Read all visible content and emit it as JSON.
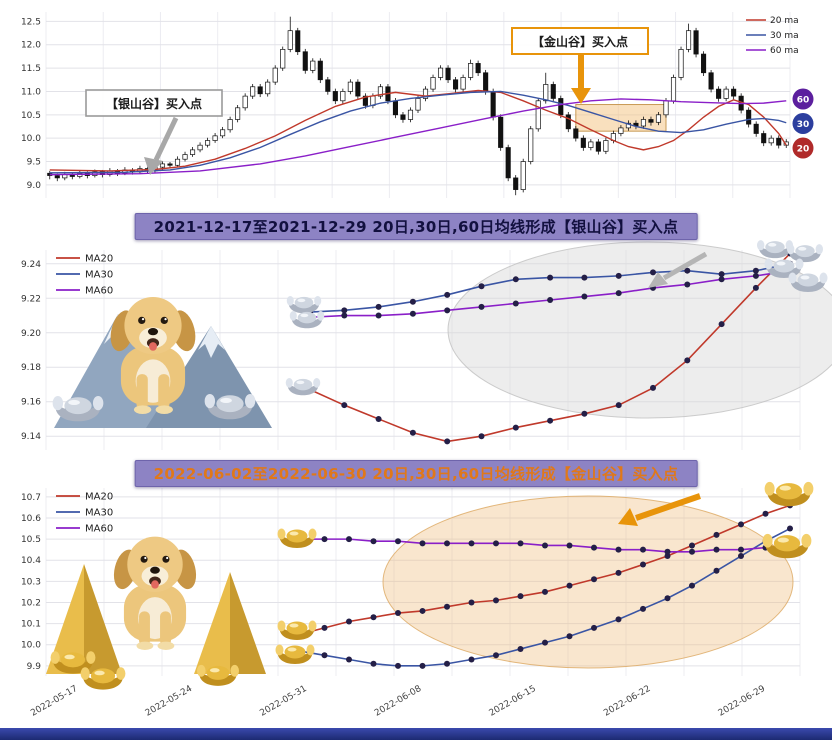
{
  "chart_data": [
    {
      "type": "candlestick",
      "title": "",
      "ylabel": "",
      "ylim": [
        8.72,
        12.7
      ],
      "yticks": [
        9.0,
        9.5,
        10.0,
        10.5,
        11.0,
        11.5,
        12.0,
        12.5
      ],
      "grid": true,
      "legend_position": "top-right",
      "legend": [
        {
          "label": "20 ma",
          "color": "#c0392b"
        },
        {
          "label": "30 ma",
          "color": "#3a55a4"
        },
        {
          "label": "60 ma",
          "color": "#8a1fc8"
        }
      ],
      "badges": [
        {
          "label": "60",
          "color": "#5c1f9e"
        },
        {
          "label": "30",
          "color": "#2c3e9e"
        },
        {
          "label": "20",
          "color": "#b02a2a"
        }
      ],
      "annotations": [
        {
          "id": "silver-valley",
          "text": "【银山谷】买入点",
          "color": "#a8a8a8"
        },
        {
          "id": "gold-valley",
          "text": "【金山谷】买入点",
          "color": "#e8940a"
        }
      ],
      "valley_box": {
        "i0": 70,
        "i1": 82,
        "price_top": 10.72,
        "price_bottom": 10.15
      },
      "candles": [
        [
          9.25,
          9.3,
          9.12,
          9.2
        ],
        [
          9.2,
          9.24,
          9.08,
          9.15
        ],
        [
          9.15,
          9.28,
          9.1,
          9.22
        ],
        [
          9.22,
          9.26,
          9.12,
          9.18
        ],
        [
          9.18,
          9.3,
          9.14,
          9.25
        ],
        [
          9.25,
          9.29,
          9.14,
          9.2
        ],
        [
          9.2,
          9.33,
          9.16,
          9.28
        ],
        [
          9.28,
          9.32,
          9.16,
          9.22
        ],
        [
          9.22,
          9.36,
          9.18,
          9.3
        ],
        [
          9.3,
          9.34,
          9.19,
          9.25
        ],
        [
          9.25,
          9.38,
          9.21,
          9.32
        ],
        [
          9.32,
          9.36,
          9.22,
          9.28
        ],
        [
          9.28,
          9.41,
          9.24,
          9.35
        ],
        [
          9.35,
          9.39,
          9.24,
          9.3
        ],
        [
          9.3,
          9.44,
          9.26,
          9.38
        ],
        [
          9.38,
          9.51,
          9.32,
          9.45
        ],
        [
          9.45,
          9.49,
          9.36,
          9.42
        ],
        [
          9.42,
          9.61,
          9.38,
          9.55
        ],
        [
          9.55,
          9.71,
          9.5,
          9.65
        ],
        [
          9.65,
          9.81,
          9.6,
          9.75
        ],
        [
          9.75,
          9.91,
          9.7,
          9.85
        ],
        [
          9.85,
          10.01,
          9.8,
          9.95
        ],
        [
          9.95,
          10.11,
          9.9,
          10.05
        ],
        [
          10.05,
          10.24,
          10.0,
          10.18
        ],
        [
          10.18,
          10.46,
          10.12,
          10.4
        ],
        [
          10.4,
          10.71,
          10.34,
          10.65
        ],
        [
          10.65,
          10.96,
          10.59,
          10.9
        ],
        [
          10.9,
          11.16,
          10.84,
          11.1
        ],
        [
          11.1,
          11.16,
          10.88,
          10.95
        ],
        [
          10.95,
          11.26,
          10.89,
          11.2
        ],
        [
          11.2,
          11.56,
          11.14,
          11.5
        ],
        [
          11.5,
          11.96,
          11.44,
          11.9
        ],
        [
          11.9,
          12.6,
          11.84,
          12.3
        ],
        [
          12.3,
          12.36,
          11.78,
          11.85
        ],
        [
          11.85,
          11.91,
          11.38,
          11.45
        ],
        [
          11.45,
          11.71,
          11.39,
          11.65
        ],
        [
          11.65,
          11.71,
          11.18,
          11.25
        ],
        [
          11.25,
          11.31,
          10.93,
          11.0
        ],
        [
          11.0,
          11.06,
          10.73,
          10.8
        ],
        [
          10.8,
          11.06,
          10.74,
          11.0
        ],
        [
          11.0,
          11.26,
          10.94,
          11.2
        ],
        [
          11.2,
          11.26,
          10.83,
          10.9
        ],
        [
          10.9,
          10.96,
          10.63,
          10.7
        ],
        [
          10.7,
          10.96,
          10.64,
          10.9
        ],
        [
          10.9,
          11.16,
          10.84,
          11.1
        ],
        [
          11.1,
          11.16,
          10.73,
          10.8
        ],
        [
          10.8,
          10.86,
          10.43,
          10.5
        ],
        [
          10.5,
          10.56,
          10.33,
          10.4
        ],
        [
          10.4,
          10.66,
          10.34,
          10.6
        ],
        [
          10.6,
          10.91,
          10.54,
          10.85
        ],
        [
          10.85,
          11.11,
          10.79,
          11.05
        ],
        [
          11.05,
          11.36,
          10.99,
          11.3
        ],
        [
          11.3,
          11.56,
          11.24,
          11.5
        ],
        [
          11.5,
          11.56,
          11.18,
          11.25
        ],
        [
          11.25,
          11.31,
          10.98,
          11.05
        ],
        [
          11.05,
          11.36,
          10.99,
          11.3
        ],
        [
          11.3,
          11.68,
          11.24,
          11.6
        ],
        [
          11.6,
          11.66,
          11.33,
          11.4
        ],
        [
          11.4,
          11.46,
          10.93,
          11.0
        ],
        [
          11.0,
          11.06,
          10.38,
          10.45
        ],
        [
          10.45,
          10.51,
          9.73,
          9.8
        ],
        [
          9.8,
          9.86,
          9.08,
          9.15
        ],
        [
          9.15,
          9.21,
          8.78,
          8.9
        ],
        [
          8.9,
          9.56,
          8.84,
          9.5
        ],
        [
          9.5,
          10.26,
          9.44,
          10.2
        ],
        [
          10.2,
          10.86,
          10.14,
          10.8
        ],
        [
          10.8,
          11.4,
          10.74,
          11.15
        ],
        [
          11.15,
          11.21,
          10.78,
          10.85
        ],
        [
          10.85,
          10.91,
          10.43,
          10.5
        ],
        [
          10.5,
          10.56,
          10.13,
          10.2
        ],
        [
          10.2,
          10.26,
          9.93,
          10.0
        ],
        [
          10.0,
          10.06,
          9.73,
          9.8
        ],
        [
          9.8,
          9.98,
          9.74,
          9.92
        ],
        [
          9.92,
          9.98,
          9.65,
          9.72
        ],
        [
          9.72,
          10.01,
          9.66,
          9.95
        ],
        [
          9.95,
          10.16,
          9.89,
          10.1
        ],
        [
          10.1,
          10.28,
          10.04,
          10.22
        ],
        [
          10.22,
          10.38,
          10.16,
          10.32
        ],
        [
          10.32,
          10.38,
          10.19,
          10.26
        ],
        [
          10.26,
          10.46,
          10.2,
          10.4
        ],
        [
          10.4,
          10.46,
          10.27,
          10.34
        ],
        [
          10.34,
          10.56,
          10.28,
          10.5
        ],
        [
          10.5,
          10.86,
          10.44,
          10.8
        ],
        [
          10.8,
          11.36,
          10.74,
          11.3
        ],
        [
          11.3,
          11.96,
          11.24,
          11.9
        ],
        [
          11.9,
          12.45,
          11.84,
          12.3
        ],
        [
          12.3,
          12.36,
          11.73,
          11.8
        ],
        [
          11.8,
          11.86,
          11.33,
          11.4
        ],
        [
          11.4,
          11.46,
          10.98,
          11.05
        ],
        [
          11.05,
          11.11,
          10.78,
          10.85
        ],
        [
          10.85,
          11.11,
          10.79,
          11.05
        ],
        [
          11.05,
          11.11,
          10.83,
          10.9
        ],
        [
          10.9,
          10.96,
          10.53,
          10.6
        ],
        [
          10.6,
          10.66,
          10.23,
          10.3
        ],
        [
          10.3,
          10.36,
          10.03,
          10.1
        ],
        [
          10.1,
          10.16,
          9.83,
          9.9
        ],
        [
          9.9,
          10.06,
          9.84,
          10.0
        ],
        [
          10.0,
          10.06,
          9.78,
          9.85
        ],
        [
          9.85,
          9.98,
          9.79,
          9.92
        ]
      ],
      "ma20": [
        [
          0,
          9.32
        ],
        [
          8,
          9.3
        ],
        [
          14,
          9.33
        ],
        [
          18,
          9.4
        ],
        [
          22,
          9.55
        ],
        [
          26,
          9.78
        ],
        [
          30,
          10.05
        ],
        [
          34,
          10.38
        ],
        [
          38,
          10.68
        ],
        [
          42,
          10.88
        ],
        [
          46,
          10.98
        ],
        [
          50,
          10.9
        ],
        [
          53,
          10.95
        ],
        [
          57,
          11.02
        ],
        [
          60,
          10.98
        ],
        [
          63,
          10.8
        ],
        [
          66,
          10.6
        ],
        [
          69,
          10.42
        ],
        [
          72,
          10.18
        ],
        [
          75,
          9.95
        ],
        [
          77,
          9.82
        ],
        [
          79,
          9.75
        ],
        [
          81,
          9.82
        ],
        [
          83,
          9.95
        ],
        [
          85,
          10.18
        ],
        [
          87,
          10.45
        ],
        [
          89,
          10.68
        ],
        [
          91,
          10.82
        ],
        [
          93,
          10.72
        ],
        [
          95,
          10.45
        ],
        [
          97,
          10.1
        ],
        [
          98,
          9.85
        ]
      ],
      "ma30": [
        [
          0,
          9.26
        ],
        [
          10,
          9.27
        ],
        [
          16,
          9.32
        ],
        [
          20,
          9.42
        ],
        [
          24,
          9.58
        ],
        [
          28,
          9.8
        ],
        [
          32,
          10.08
        ],
        [
          36,
          10.35
        ],
        [
          40,
          10.58
        ],
        [
          44,
          10.75
        ],
        [
          48,
          10.85
        ],
        [
          52,
          10.92
        ],
        [
          56,
          10.98
        ],
        [
          60,
          11.0
        ],
        [
          63,
          10.92
        ],
        [
          66,
          10.82
        ],
        [
          69,
          10.7
        ],
        [
          72,
          10.55
        ],
        [
          75,
          10.4
        ],
        [
          78,
          10.25
        ],
        [
          81,
          10.15
        ],
        [
          84,
          10.12
        ],
        [
          87,
          10.18
        ],
        [
          90,
          10.3
        ],
        [
          93,
          10.4
        ],
        [
          95,
          10.42
        ],
        [
          97,
          10.38
        ],
        [
          98,
          10.33
        ]
      ],
      "ma60": [
        [
          0,
          9.22
        ],
        [
          12,
          9.24
        ],
        [
          20,
          9.3
        ],
        [
          28,
          9.45
        ],
        [
          34,
          9.62
        ],
        [
          40,
          9.82
        ],
        [
          46,
          10.02
        ],
        [
          52,
          10.22
        ],
        [
          58,
          10.42
        ],
        [
          63,
          10.58
        ],
        [
          68,
          10.72
        ],
        [
          72,
          10.8
        ],
        [
          76,
          10.84
        ],
        [
          80,
          10.82
        ],
        [
          84,
          10.78
        ],
        [
          88,
          10.76
        ],
        [
          92,
          10.74
        ],
        [
          95,
          10.75
        ],
        [
          98,
          10.8
        ]
      ]
    },
    {
      "type": "line",
      "title": "2021-12-17至2021-12-29 20日,30日,60日均线形成【银山谷】买入点",
      "ylim": [
        9.132,
        9.248
      ],
      "yticks": [
        9.14,
        9.16,
        9.18,
        9.2,
        9.22,
        9.24
      ],
      "grid": true,
      "legend_position": "top-left",
      "highlight": "gray-ellipse",
      "series": [
        {
          "name": "MA20",
          "color": "#c0392b",
          "values": [
            9.167,
            9.158,
            9.15,
            9.142,
            9.137,
            9.14,
            9.145,
            9.149,
            9.153,
            9.158,
            9.168,
            9.184,
            9.205,
            9.226,
            9.246
          ]
        },
        {
          "name": "MA30",
          "color": "#3a55a4",
          "values": [
            9.212,
            9.213,
            9.215,
            9.218,
            9.222,
            9.227,
            9.231,
            9.232,
            9.232,
            9.233,
            9.235,
            9.236,
            9.234,
            9.236,
            9.24
          ]
        },
        {
          "name": "MA60",
          "color": "#8a1fc8",
          "values": [
            9.209,
            9.21,
            9.21,
            9.211,
            9.213,
            9.215,
            9.217,
            9.219,
            9.221,
            9.223,
            9.226,
            9.228,
            9.231,
            9.233,
            9.236
          ]
        }
      ]
    },
    {
      "type": "line",
      "title": "2022-06-02至2022-06-30 20日,30日,60日均线形成【金山谷】买入点",
      "ylim": [
        9.852,
        10.742
      ],
      "yticks": [
        9.9,
        10.0,
        10.1,
        10.2,
        10.3,
        10.4,
        10.5,
        10.6,
        10.7
      ],
      "grid": true,
      "legend_position": "top-left",
      "highlight": "orange-ellipse",
      "xticklabels": [
        "2022-05-17",
        "2022-05-24",
        "2022-05-31",
        "2022-06-08",
        "2022-06-15",
        "2022-06-22",
        "2022-06-29"
      ],
      "series": [
        {
          "name": "MA20",
          "color": "#c0392b",
          "values": [
            10.05,
            10.08,
            10.11,
            10.13,
            10.15,
            10.16,
            10.18,
            10.2,
            10.21,
            10.23,
            10.25,
            10.28,
            10.31,
            10.34,
            10.38,
            10.42,
            10.47,
            10.52,
            10.57,
            10.62,
            10.66
          ]
        },
        {
          "name": "MA30",
          "color": "#3a55a4",
          "values": [
            9.97,
            9.95,
            9.93,
            9.91,
            9.9,
            9.9,
            9.91,
            9.93,
            9.95,
            9.98,
            10.01,
            10.04,
            10.08,
            10.12,
            10.17,
            10.22,
            10.28,
            10.35,
            10.42,
            10.49,
            10.55
          ]
        },
        {
          "name": "MA60",
          "color": "#8a1fc8",
          "values": [
            10.5,
            10.5,
            10.5,
            10.49,
            10.49,
            10.48,
            10.48,
            10.48,
            10.48,
            10.48,
            10.47,
            10.47,
            10.46,
            10.45,
            10.45,
            10.44,
            10.44,
            10.45,
            10.45,
            10.46,
            10.46
          ]
        }
      ]
    }
  ]
}
